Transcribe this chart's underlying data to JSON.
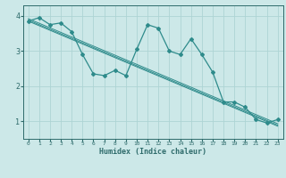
{
  "x": [
    0,
    1,
    2,
    3,
    4,
    5,
    6,
    7,
    8,
    9,
    10,
    11,
    12,
    13,
    14,
    15,
    16,
    17,
    18,
    19,
    20,
    21,
    22,
    23
  ],
  "y_curve": [
    3.85,
    3.95,
    3.75,
    3.8,
    3.55,
    2.9,
    2.35,
    2.3,
    2.45,
    2.3,
    3.05,
    3.75,
    3.65,
    3.0,
    2.9,
    3.35,
    2.9,
    2.4,
    1.55,
    1.55,
    1.4,
    1.05,
    0.95,
    1.05
  ],
  "y_line1": [
    3.88,
    3.75,
    3.62,
    3.49,
    3.36,
    3.23,
    3.1,
    2.97,
    2.84,
    2.71,
    2.58,
    2.45,
    2.32,
    2.19,
    2.06,
    1.93,
    1.8,
    1.67,
    1.54,
    1.41,
    1.28,
    1.15,
    1.02,
    0.89
  ],
  "y_line2": [
    3.92,
    3.79,
    3.66,
    3.53,
    3.4,
    3.27,
    3.14,
    3.01,
    2.88,
    2.75,
    2.62,
    2.49,
    2.36,
    2.23,
    2.1,
    1.97,
    1.84,
    1.71,
    1.58,
    1.45,
    1.32,
    1.19,
    1.06,
    0.93
  ],
  "y_line3": [
    3.85,
    3.72,
    3.59,
    3.46,
    3.33,
    3.2,
    3.07,
    2.94,
    2.81,
    2.68,
    2.55,
    2.42,
    2.29,
    2.16,
    2.03,
    1.9,
    1.77,
    1.64,
    1.51,
    1.38,
    1.25,
    1.12,
    0.99,
    0.86
  ],
  "line_color": "#2e8b8b",
  "bg_color": "#cce8e8",
  "grid_color": "#add4d4",
  "axis_color": "#2e6b6b",
  "xlabel": "Humidex (Indice chaleur)",
  "xlim": [
    -0.5,
    23.5
  ],
  "ylim": [
    0.5,
    4.3
  ],
  "yticks": [
    1,
    2,
    3,
    4
  ],
  "xticks": [
    0,
    1,
    2,
    3,
    4,
    5,
    6,
    7,
    8,
    9,
    10,
    11,
    12,
    13,
    14,
    15,
    16,
    17,
    18,
    19,
    20,
    21,
    22,
    23
  ]
}
